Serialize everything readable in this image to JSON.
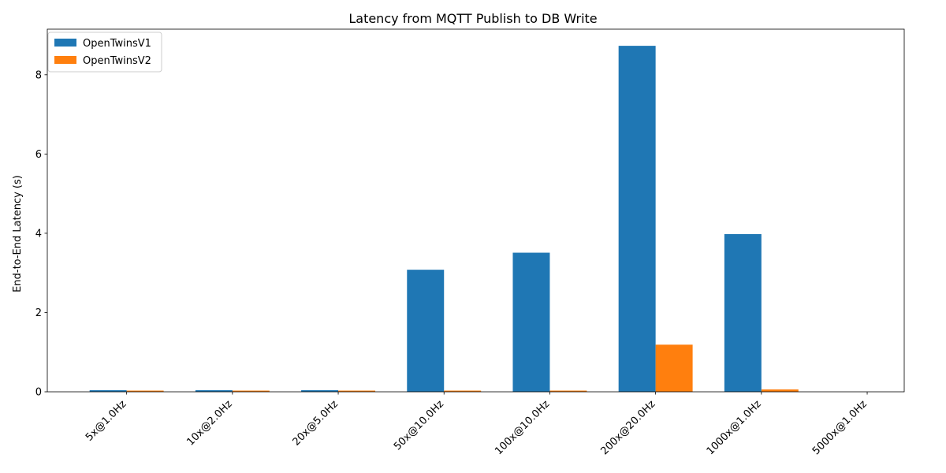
{
  "chart_data": {
    "type": "bar",
    "title": "Latency from MQTT Publish to DB Write",
    "xlabel": "",
    "ylabel": "End-to-End Latency (s)",
    "categories": [
      "5x@1.0Hz",
      "10x@2.0Hz",
      "20x@5.0Hz",
      "50x@10.0Hz",
      "100x@10.0Hz",
      "200x@20.0Hz",
      "1000x@1.0Hz",
      "5000x@1.0Hz"
    ],
    "series": [
      {
        "name": "OpenTwinsV1",
        "color": "#1f77b4",
        "values": [
          0.04,
          0.04,
          0.04,
          3.08,
          3.51,
          8.73,
          3.98,
          null
        ]
      },
      {
        "name": "OpenTwinsV2",
        "color": "#ff7f0e",
        "values": [
          0.03,
          0.03,
          0.03,
          0.03,
          0.03,
          1.19,
          0.06,
          null
        ]
      }
    ],
    "ylim": [
      0,
      9.15
    ],
    "yticks": [
      0,
      2,
      4,
      6,
      8
    ],
    "grid": false,
    "legend_position": "top-left"
  }
}
